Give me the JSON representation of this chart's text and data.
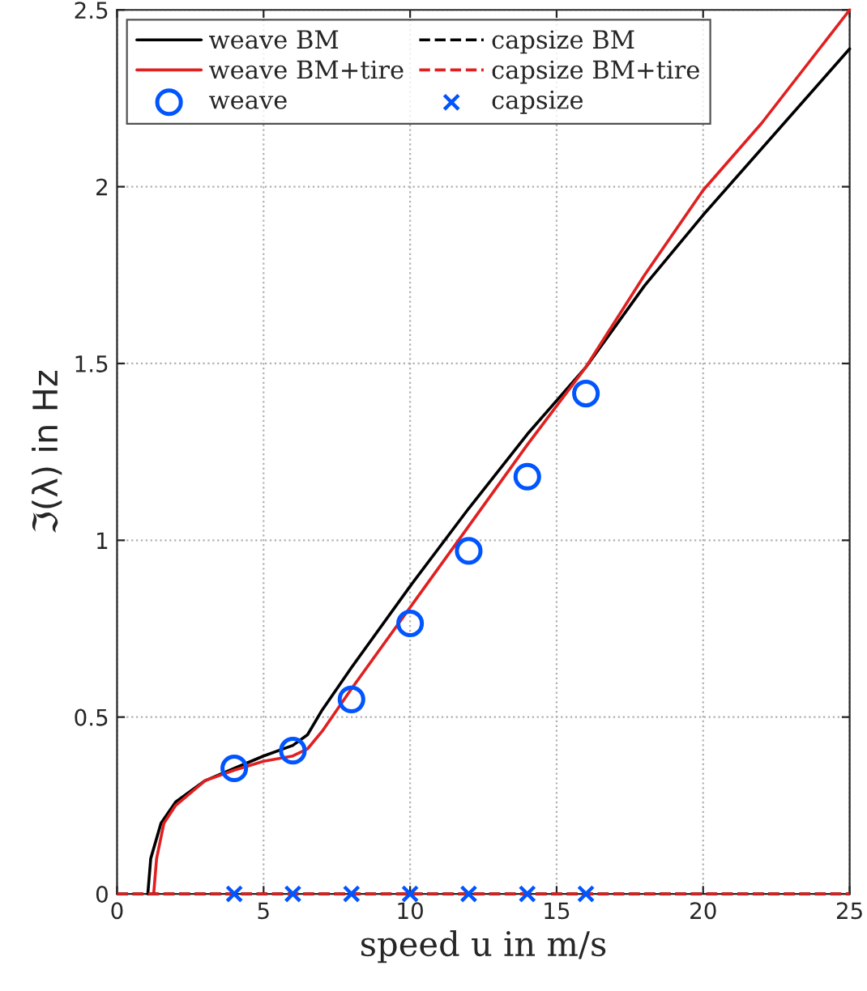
{
  "chart_data": {
    "type": "line",
    "xlabel": "speed u in m/s",
    "ylabel": "ℑ(λ) in Hz",
    "xlim": [
      0,
      25
    ],
    "ylim": [
      0,
      2.5
    ],
    "xticks": [
      0,
      5,
      10,
      15,
      20,
      25
    ],
    "yticks": [
      0,
      0.5,
      1,
      1.5,
      2,
      2.5
    ],
    "grid": true,
    "legend": "top left",
    "series": [
      {
        "name": "weave BM",
        "color": "#000000",
        "line_style": "solid",
        "marker": "none",
        "x": [
          1.05,
          1.15,
          1.5,
          2,
          3,
          4,
          5,
          6,
          6.5,
          7,
          8,
          10,
          12,
          14,
          16,
          18,
          20,
          25
        ],
        "values": [
          0,
          0.1,
          0.2,
          0.26,
          0.32,
          0.355,
          0.39,
          0.42,
          0.45,
          0.52,
          0.64,
          0.87,
          1.09,
          1.3,
          1.49,
          1.72,
          1.92,
          2.39
        ]
      },
      {
        "name": "weave BM+tire",
        "color": "#e02020",
        "line_style": "solid",
        "marker": "none",
        "x": [
          1.25,
          1.35,
          1.6,
          2,
          3,
          4,
          5,
          6,
          6.5,
          7,
          8,
          10,
          12,
          14,
          16,
          18,
          20,
          22,
          25
        ],
        "values": [
          0,
          0.1,
          0.2,
          0.25,
          0.32,
          0.35,
          0.375,
          0.39,
          0.41,
          0.46,
          0.58,
          0.81,
          1.04,
          1.27,
          1.49,
          1.75,
          1.99,
          2.18,
          2.5
        ]
      },
      {
        "name": "weave",
        "type": "scatter",
        "color": "#0055ff",
        "marker": "circle",
        "x": [
          4,
          6,
          8,
          10,
          12,
          14,
          16
        ],
        "values": [
          0.355,
          0.405,
          0.55,
          0.765,
          0.97,
          1.18,
          1.415
        ]
      },
      {
        "name": "capsize BM",
        "color": "#000000",
        "line_style": "dashed",
        "marker": "none",
        "x": [
          0,
          25
        ],
        "values": [
          0,
          0
        ]
      },
      {
        "name": "capsize BM+tire",
        "color": "#e02020",
        "line_style": "dashed",
        "marker": "none",
        "x": [
          0,
          25
        ],
        "values": [
          0,
          0
        ]
      },
      {
        "name": "capsize",
        "type": "scatter",
        "color": "#0055ff",
        "marker": "cross",
        "x": [
          4,
          6,
          8,
          10,
          12,
          14,
          16
        ],
        "values": [
          0,
          0,
          0,
          0,
          0,
          0,
          0
        ]
      }
    ]
  }
}
